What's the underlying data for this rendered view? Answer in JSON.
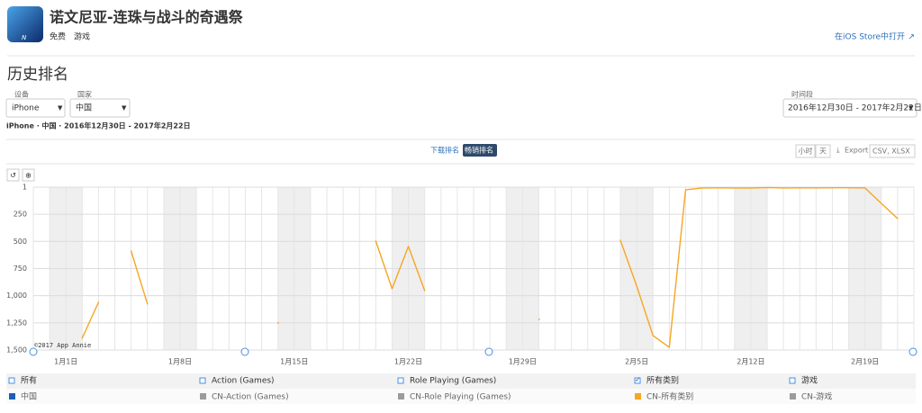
{
  "header": {
    "app_name": "诺文尼亚-连珠与战斗的奇遇祭",
    "price": "免费",
    "genre": "游戏",
    "store_link": "在iOS Store中打开"
  },
  "section_title": "历史排名",
  "filters": {
    "device_label": "设备",
    "device": "iPhone",
    "country_label": "国家",
    "country": "中国",
    "period_label": "时间段",
    "period": "2016年12月30日 - 2017年2月22日"
  },
  "summary": "iPhone · 中国 · 2016年12月30日 - 2017年2月22日",
  "tabs": [
    "下载排名",
    "畅销排名"
  ],
  "active_tab": 1,
  "granularity": [
    "小时",
    "天"
  ],
  "export": "Export",
  "formats": "CSV, XLSX",
  "chart_data": {
    "type": "line",
    "annotation": "©2017 App Annie",
    "categories": [
      null,
      null,
      "1月1日",
      null,
      null,
      null,
      null,
      null,
      null,
      "1月8日",
      null,
      null,
      null,
      null,
      null,
      null,
      "1月15日",
      null,
      null,
      null,
      null,
      null,
      null,
      "1月22日",
      null,
      null,
      null,
      null,
      null,
      null,
      "1月29日",
      null,
      null,
      null,
      null,
      null,
      null,
      "2月5日",
      null,
      null,
      null,
      null,
      null,
      null,
      "2月12日",
      null,
      null,
      null,
      null,
      null,
      null,
      "2月19日",
      null,
      null,
      null
    ],
    "series": [
      {
        "name": "CN-所有类别",
        "color": "#f5a623",
        "values": [
          null,
          null,
          null,
          1390,
          1060,
          null,
          590,
          1077,
          null,
          null,
          null,
          null,
          null,
          null,
          null,
          1250,
          null,
          null,
          null,
          null,
          null,
          497,
          936,
          547,
          953,
          null,
          null,
          null,
          null,
          null,
          null,
          1218,
          null,
          null,
          null,
          null,
          489,
          911,
          1367,
          1475,
          26,
          9,
          8,
          9,
          9,
          5,
          9,
          8,
          8,
          7,
          7,
          8,
          150,
          290,
          null
        ]
      }
    ],
    "ylim": [
      1,
      1500
    ],
    "y_reversed": true,
    "yticks": [
      1,
      250,
      500,
      750,
      {
        "value": 1000,
        "label": "1,000"
      },
      {
        "value": 1250,
        "label": "1,250"
      },
      {
        "value": 1500,
        "label": "1,500"
      }
    ],
    "grid": true
  },
  "legend_table": {
    "headers": [
      {
        "label": "所有",
        "checked": false
      },
      {
        "label": "Action (Games)",
        "checked": false
      },
      {
        "label": "Role Playing (Games)",
        "checked": false
      },
      {
        "label": "所有类别",
        "checked": true
      },
      {
        "label": "游戏",
        "checked": false
      }
    ],
    "row": [
      {
        "label": "中国",
        "color": "#1a5fb4"
      },
      {
        "label": "CN-Action (Games)",
        "color": "#9b9b9b"
      },
      {
        "label": "CN-Role Playing (Games)",
        "color": "#9b9b9b"
      },
      {
        "label": "CN-游戏",
        "color": "#9b9b9b"
      }
    ]
  }
}
